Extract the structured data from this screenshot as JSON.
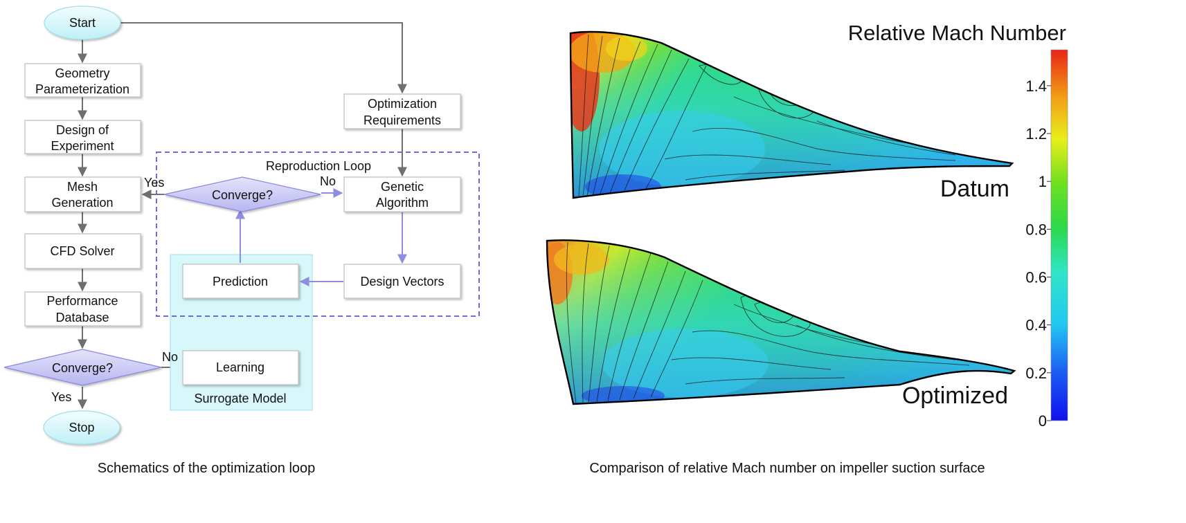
{
  "flowchart": {
    "start": "Start",
    "geometry": [
      "Geometry",
      "Parameterization"
    ],
    "doe": [
      "Design of",
      "Experiment"
    ],
    "mesh": [
      "Mesh",
      "Generation"
    ],
    "cfd": "CFD Solver",
    "perf": [
      "Performance",
      "Database"
    ],
    "converge_main": "Converge?",
    "yes_bottom": "Yes",
    "no_bottom": "No",
    "stop": "Stop",
    "opt_req": [
      "Optimization",
      "Requirements"
    ],
    "reproduction_loop": "Reproduction Loop",
    "converge_loop": "Converge?",
    "yes_top": "Yes",
    "no_top": "No",
    "genetic": [
      "Genetic",
      "Algorithm"
    ],
    "design_vectors": "Design Vectors",
    "prediction": "Prediction",
    "learning": "Learning",
    "surrogate_model": "Surrogate Model",
    "caption": "Schematics of the optimization loop"
  },
  "contour": {
    "colorbar_title": "Relative Mach Number",
    "colorbar_ticks": [
      "1.4",
      "1.2",
      "1",
      "0.8",
      "0.6",
      "0.4",
      "0.2",
      "0"
    ],
    "colorbar_min": 0,
    "colorbar_max": 1.55,
    "label_datum": "Datum",
    "label_optimized": "Optimized",
    "caption": "Comparison of  relative Mach number on impeller suction surface",
    "colors": {
      "high": "#e8301e",
      "orange": "#f08a18",
      "yellow": "#f4e81a",
      "green": "#27d93a",
      "cyan": "#2fd7f0",
      "blue": "#1717ee"
    }
  }
}
